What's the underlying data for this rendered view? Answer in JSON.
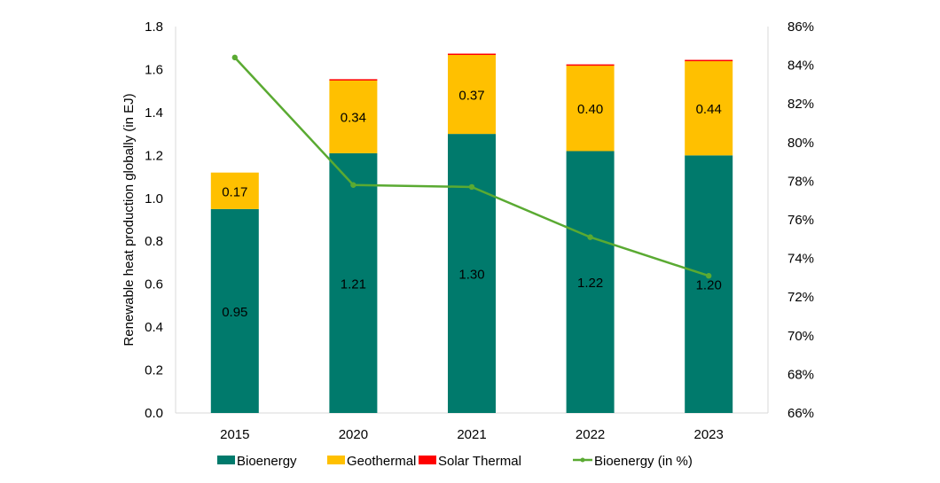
{
  "chart_data": {
    "type": "bar",
    "stacked": true,
    "categories": [
      "2015",
      "2020",
      "2021",
      "2022",
      "2023"
    ],
    "series": [
      {
        "name": "Bioenergy",
        "values": [
          0.95,
          1.21,
          1.3,
          1.22,
          1.2
        ],
        "color": "#007A6C",
        "labels": [
          "0.95",
          "1.21",
          "1.30",
          "1.22",
          "1.20"
        ]
      },
      {
        "name": "Geothermal",
        "values": [
          0.17,
          0.34,
          0.37,
          0.4,
          0.44
        ],
        "color": "#FFC000",
        "labels": [
          "0.17",
          "0.34",
          "0.37",
          "0.40",
          "0.44"
        ]
      },
      {
        "name": "Solar Thermal",
        "values": [
          0.0,
          0.005,
          0.004,
          0.004,
          0.005
        ],
        "color": "#FF0000"
      }
    ],
    "line_series": {
      "name": "Bioenergy (in %)",
      "axis": "right",
      "values": [
        84.4,
        77.8,
        77.7,
        75.1,
        73.1
      ],
      "color": "#5AAA32"
    },
    "ylabel": "Renewable heat production globally (in EJ)",
    "ylim": [
      0,
      1.8
    ],
    "yticks": [
      "0.0",
      "0.2",
      "0.4",
      "0.6",
      "0.8",
      "1.0",
      "1.2",
      "1.4",
      "1.6",
      "1.8"
    ],
    "y2lim": [
      66,
      86
    ],
    "y2ticks": [
      "66%",
      "68%",
      "70%",
      "72%",
      "74%",
      "76%",
      "78%",
      "80%",
      "82%",
      "84%",
      "86%"
    ],
    "grid": false,
    "legend": "bottom"
  }
}
